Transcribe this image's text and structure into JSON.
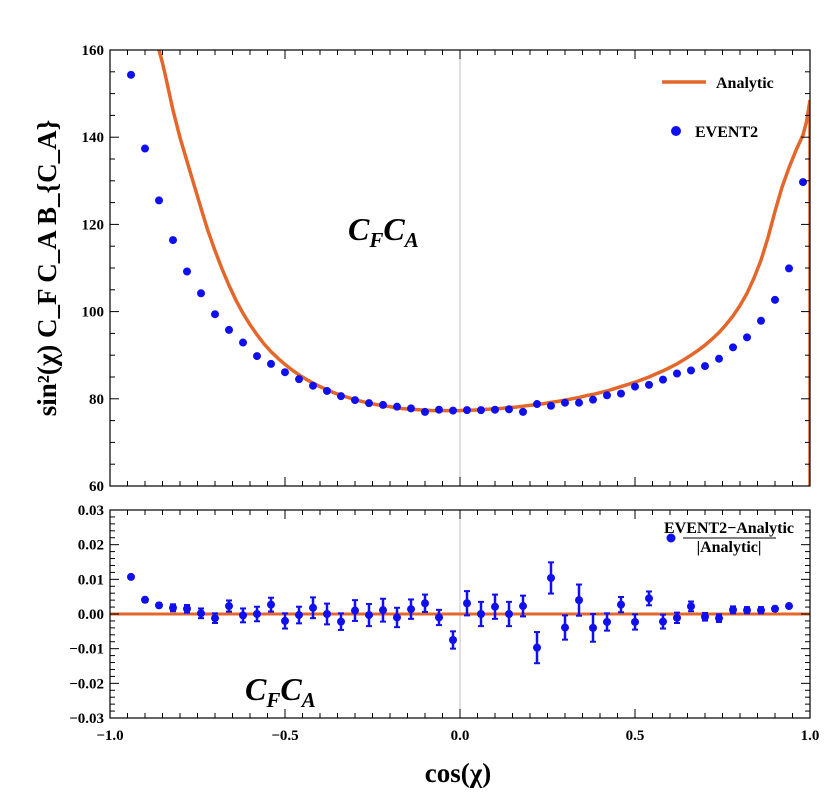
{
  "colors": {
    "analytic": "#e3672a",
    "event2": "#1010ee",
    "zero_line": "#c0c0c0",
    "frame": "#000000"
  },
  "chart_data": [
    {
      "type": "scatter",
      "panel": "top",
      "ylabel": "sin²(χ) C_F C_A B_{C_A}",
      "annotation": {
        "main": "C",
        "sub1": "F",
        "main2": "C",
        "sub2": "A"
      },
      "xlim": [
        -1.0,
        1.0
      ],
      "ylim": [
        60,
        160
      ],
      "yticks": [
        60,
        80,
        100,
        120,
        140,
        160
      ],
      "legend": {
        "placement": "top-right",
        "entries": [
          "Analytic",
          "EVENT2"
        ]
      },
      "series": [
        {
          "name": "Analytic",
          "style": "line",
          "x": [
            -0.86,
            -0.85,
            -0.84,
            -0.82,
            -0.8,
            -0.78,
            -0.76,
            -0.74,
            -0.72,
            -0.7,
            -0.68,
            -0.66,
            -0.64,
            -0.62,
            -0.6,
            -0.58,
            -0.56,
            -0.54,
            -0.52,
            -0.5,
            -0.48,
            -0.46,
            -0.44,
            -0.42,
            -0.4,
            -0.38,
            -0.36,
            -0.34,
            -0.32,
            -0.3,
            -0.28,
            -0.26,
            -0.24,
            -0.22,
            -0.2,
            -0.18,
            -0.16,
            -0.14,
            -0.12,
            -0.1,
            -0.08,
            -0.06,
            -0.04,
            -0.02,
            0.0,
            0.02,
            0.04,
            0.06,
            0.08,
            0.1,
            0.12,
            0.14,
            0.16,
            0.18,
            0.2,
            0.22,
            0.24,
            0.26,
            0.28,
            0.3,
            0.32,
            0.34,
            0.36,
            0.38,
            0.4,
            0.42,
            0.44,
            0.46,
            0.48,
            0.5,
            0.52,
            0.54,
            0.56,
            0.58,
            0.6,
            0.62,
            0.64,
            0.66,
            0.68,
            0.7,
            0.72,
            0.74,
            0.76,
            0.78,
            0.8,
            0.82,
            0.84,
            0.86,
            0.88,
            0.9,
            0.92,
            0.94,
            0.96,
            0.98,
            0.99,
            0.995,
            0.998,
            1.0,
            1.0
          ],
          "y": [
            160.0,
            157.0,
            153.5,
            146.2,
            139.9,
            134.5,
            129.1,
            123.7,
            118.5,
            114.0,
            109.8,
            106.0,
            102.6,
            99.6,
            97.0,
            94.7,
            92.6,
            90.8,
            89.3,
            87.9,
            86.6,
            85.5,
            84.5,
            83.6,
            82.8,
            82.1,
            81.4,
            80.8,
            80.3,
            79.8,
            79.4,
            79.0,
            78.7,
            78.4,
            78.2,
            77.9,
            77.7,
            77.6,
            77.5,
            77.4,
            77.3,
            77.3,
            77.3,
            77.3,
            77.3,
            77.4,
            77.4,
            77.5,
            77.6,
            77.7,
            77.8,
            78.0,
            78.1,
            78.3,
            78.5,
            78.7,
            78.9,
            79.2,
            79.4,
            79.7,
            80.0,
            80.3,
            80.7,
            81.0,
            81.4,
            81.8,
            82.3,
            82.8,
            83.3,
            83.8,
            84.4,
            85.0,
            85.7,
            86.4,
            87.2,
            88.0,
            89.0,
            90.0,
            91.1,
            92.3,
            93.7,
            95.2,
            97.0,
            99.0,
            101.4,
            104.2,
            107.7,
            111.8,
            117.0,
            123.0,
            128.5,
            133.0,
            137.0,
            140.5,
            143.5,
            146.0,
            147.5,
            148.5,
            60.0
          ]
        },
        {
          "name": "EVENT2",
          "style": "points",
          "x": [
            -0.94,
            -0.9,
            -0.86,
            -0.82,
            -0.78,
            -0.74,
            -0.7,
            -0.66,
            -0.62,
            -0.58,
            -0.54,
            -0.5,
            -0.46,
            -0.42,
            -0.38,
            -0.34,
            -0.3,
            -0.26,
            -0.22,
            -0.18,
            -0.14,
            -0.1,
            -0.06,
            -0.02,
            0.02,
            0.06,
            0.1,
            0.14,
            0.18,
            0.22,
            0.26,
            0.3,
            0.34,
            0.38,
            0.42,
            0.46,
            0.5,
            0.54,
            0.58,
            0.62,
            0.66,
            0.7,
            0.74,
            0.78,
            0.82,
            0.86,
            0.9,
            0.94,
            0.98
          ],
          "y": [
            154.3,
            137.4,
            125.5,
            116.4,
            109.2,
            104.2,
            99.4,
            95.8,
            92.9,
            89.8,
            88.0,
            86.1,
            84.5,
            83.0,
            81.8,
            80.6,
            79.7,
            79.0,
            78.6,
            78.2,
            77.8,
            77.0,
            77.5,
            77.3,
            77.4,
            77.4,
            77.5,
            77.6,
            77.0,
            78.8,
            78.4,
            79.1,
            79.1,
            79.8,
            80.8,
            81.2,
            82.8,
            83.2,
            84.4,
            85.8,
            86.5,
            87.5,
            89.2,
            91.8,
            94.1,
            97.9,
            102.7,
            109.9,
            129.7
          ]
        }
      ]
    },
    {
      "type": "scatter",
      "panel": "bottom",
      "xlabel": "cos(χ)",
      "annotation": {
        "main": "C",
        "sub1": "F",
        "main2": "C",
        "sub2": "A"
      },
      "xlim": [
        -1.0,
        1.0
      ],
      "ylim": [
        -0.03,
        0.03
      ],
      "xticks": [
        -1.0,
        -0.5,
        0.0,
        0.5,
        1.0
      ],
      "xtick_labels": [
        "−1.0",
        "−0.5",
        "0.0",
        "0.5",
        "1.0"
      ],
      "yticks": [
        -0.03,
        -0.02,
        -0.01,
        0.0,
        0.01,
        0.02,
        0.03
      ],
      "ytick_labels": [
        "−0.03",
        "−0.02",
        "−0.01",
        "0.00",
        "0.01",
        "0.02",
        "0.03"
      ],
      "legend": {
        "placement": "top-right",
        "numerator": "EVENT2−Analytic",
        "denominator": "|Analytic|"
      },
      "reference_line": 0.0,
      "series": [
        {
          "name": "EVENT2−Analytic / |Analytic|",
          "x": [
            -0.94,
            -0.9,
            -0.86,
            -0.82,
            -0.78,
            -0.74,
            -0.7,
            -0.66,
            -0.62,
            -0.58,
            -0.54,
            -0.5,
            -0.46,
            -0.42,
            -0.38,
            -0.34,
            -0.3,
            -0.26,
            -0.22,
            -0.18,
            -0.14,
            -0.1,
            -0.06,
            -0.02,
            0.02,
            0.06,
            0.1,
            0.14,
            0.18,
            0.22,
            0.26,
            0.3,
            0.34,
            0.38,
            0.42,
            0.46,
            0.5,
            0.54,
            0.58,
            0.62,
            0.66,
            0.7,
            0.74,
            0.78,
            0.82,
            0.86,
            0.9,
            0.94
          ],
          "y": [
            0.0107,
            0.0041,
            0.0025,
            0.0018,
            0.0015,
            0.0002,
            -0.0012,
            0.0023,
            -0.0004,
            0.0,
            0.0027,
            -0.002,
            -0.0003,
            0.0018,
            0.0,
            -0.0022,
            0.001,
            -0.0003,
            0.0011,
            -0.001,
            0.0014,
            0.0031,
            -0.001,
            -0.0075,
            0.0031,
            0.0,
            0.0021,
            0.0,
            0.0023,
            -0.0097,
            0.0104,
            -0.0039,
            0.004,
            -0.004,
            -0.0023,
            0.0027,
            -0.0023,
            0.0045,
            -0.0022,
            -0.0011,
            0.0022,
            -0.0008,
            -0.0012,
            0.0012,
            0.0011,
            0.0011,
            0.0015,
            0.0023
          ],
          "err": [
            0.0,
            0.0006,
            0.0006,
            0.001,
            0.0011,
            0.0014,
            0.0014,
            0.0016,
            0.002,
            0.0021,
            0.002,
            0.0022,
            0.0024,
            0.003,
            0.003,
            0.0024,
            0.003,
            0.0032,
            0.0033,
            0.0028,
            0.0028,
            0.0025,
            0.0022,
            0.0025,
            0.0035,
            0.0035,
            0.0035,
            0.0035,
            0.003,
            0.0045,
            0.0045,
            0.0035,
            0.0045,
            0.004,
            0.0025,
            0.0022,
            0.0022,
            0.002,
            0.002,
            0.0015,
            0.0014,
            0.0011,
            0.0011,
            0.001,
            0.0009,
            0.0009,
            0.0006,
            0.0004
          ]
        }
      ]
    }
  ]
}
